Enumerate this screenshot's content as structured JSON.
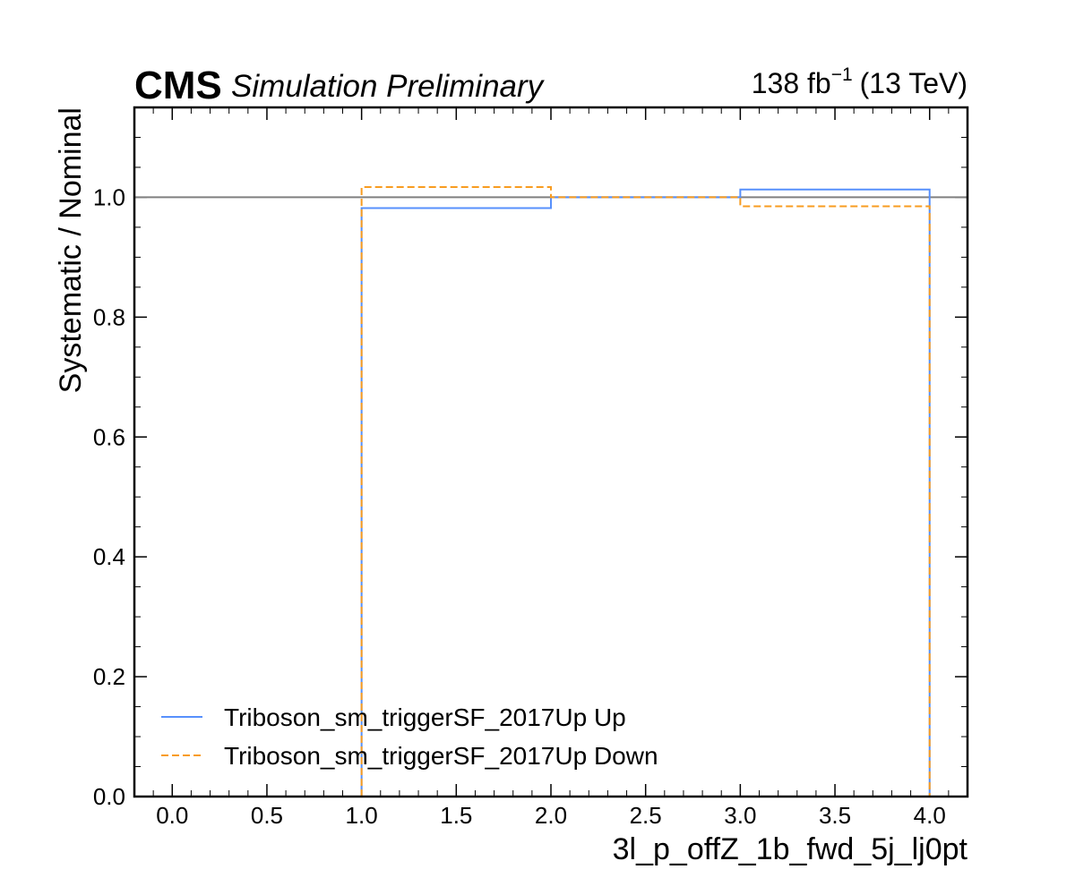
{
  "header": {
    "experiment": "CMS",
    "status": "Simulation Preliminary",
    "lumi_value": "138 fb",
    "lumi_exponent": "−1",
    "lumi_energy": "(13 TeV)"
  },
  "chart_data": {
    "type": "line",
    "drawstyle": "steps",
    "xlabel": "3l_p_offZ_1b_fwd_5j_lj0pt",
    "ylabel": "Systematic / Nominal",
    "xlim": [
      -0.2,
      4.2
    ],
    "ylim": [
      0.0,
      1.15
    ],
    "x_ticks": [
      "0.0",
      "0.5",
      "1.0",
      "1.5",
      "2.0",
      "2.5",
      "3.0",
      "3.5",
      "4.0"
    ],
    "y_ticks": [
      "0.0",
      "0.2",
      "0.4",
      "0.6",
      "0.8",
      "1.0"
    ],
    "reference_line": 1.0,
    "bin_edges": [
      1.0,
      2.0,
      3.0,
      4.0
    ],
    "series": [
      {
        "name": "Triboson_sm_triggerSF_2017Up Up",
        "values": [
          0.982,
          1.0,
          1.013
        ],
        "color": "#5790fc",
        "linestyle": "solid"
      },
      {
        "name": "Triboson_sm_triggerSF_2017Up Down",
        "values": [
          1.017,
          1.0,
          0.985
        ],
        "color": "#f89c20",
        "linestyle": "dashed"
      }
    ],
    "reference_color": "#808080",
    "legend_position": "lower-left",
    "grid": false
  }
}
